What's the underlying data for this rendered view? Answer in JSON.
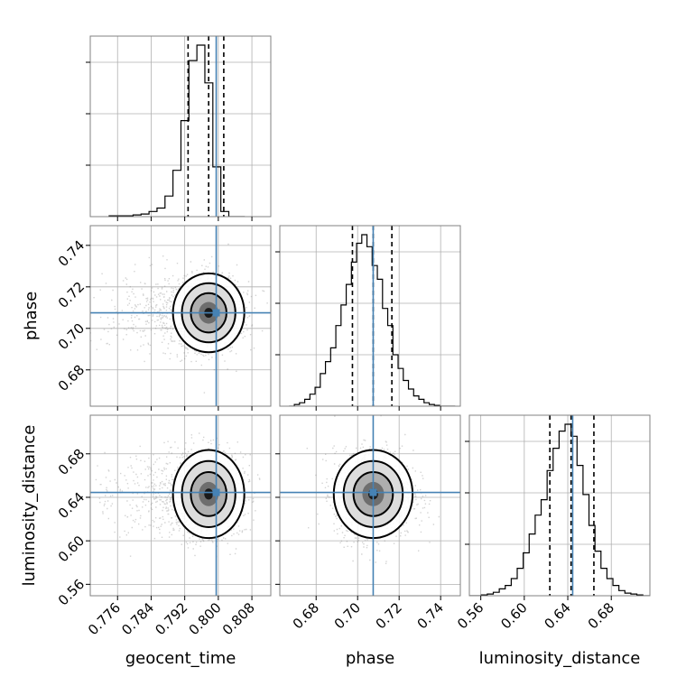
{
  "chart_data": {
    "type": "corner",
    "parameters": [
      "geocent_time",
      "phase",
      "luminosity_distance"
    ],
    "axis_labels": {
      "geocent_time": "geocent_time",
      "phase": "phase",
      "luminosity_distance": "luminosity_distance"
    },
    "ranges": {
      "geocent_time": [
        0.7695,
        0.8125
      ],
      "phase": [
        0.6625,
        0.7495
      ],
      "luminosity_distance": [
        0.5495,
        0.7155
      ]
    },
    "ticks": {
      "geocent_time": [
        0.776,
        0.784,
        0.792,
        0.8,
        0.808
      ],
      "phase": [
        0.68,
        0.7,
        0.72,
        0.74
      ],
      "luminosity_distance": [
        0.56,
        0.6,
        0.64,
        0.68
      ]
    },
    "tick_labels": {
      "geocent_time": [
        "0.776",
        "0.784",
        "0.792",
        "0.800",
        "0.808"
      ],
      "phase": [
        "0.68",
        "0.70",
        "0.72",
        "0.74"
      ],
      "luminosity_distance": [
        "0.56",
        "0.60",
        "0.64",
        "0.68"
      ]
    },
    "truths": {
      "geocent_time": 0.7995,
      "phase": 0.7075,
      "luminosity_distance": 0.6445
    },
    "quantiles": {
      "geocent_time": [
        0.7928,
        0.7977,
        0.8013
      ],
      "phase": [
        0.6975,
        0.7075,
        0.7165
      ],
      "luminosity_distance": [
        0.6235,
        0.643,
        0.664
      ]
    },
    "histograms": {
      "geocent_time": {
        "bin_edges": [
          0.774,
          0.7759,
          0.7778,
          0.7797,
          0.7816,
          0.7835,
          0.7854,
          0.7873,
          0.7892,
          0.7911,
          0.793,
          0.7949,
          0.7968,
          0.7987,
          0.8006,
          0.8025,
          0.8044,
          0.8063
        ],
        "counts": [
          0.005,
          0.005,
          0.005,
          0.01,
          0.015,
          0.03,
          0.05,
          0.12,
          0.27,
          0.56,
          0.91,
          1.0,
          0.78,
          0.29,
          0.03,
          0.0,
          0.0
        ]
      },
      "phase": {
        "bin_edges": [
          0.667,
          0.6695,
          0.672,
          0.6745,
          0.677,
          0.6795,
          0.682,
          0.6845,
          0.687,
          0.6895,
          0.692,
          0.6945,
          0.697,
          0.6995,
          0.702,
          0.7045,
          0.707,
          0.7095,
          0.712,
          0.7145,
          0.717,
          0.7195,
          0.722,
          0.7245,
          0.727,
          0.7295,
          0.732,
          0.7345,
          0.737,
          0.7395,
          0.742,
          0.7445,
          0.747
        ],
        "counts": [
          0.0,
          0.01,
          0.02,
          0.04,
          0.07,
          0.11,
          0.19,
          0.26,
          0.34,
          0.47,
          0.59,
          0.71,
          0.84,
          0.95,
          1.0,
          0.93,
          0.82,
          0.74,
          0.57,
          0.47,
          0.3,
          0.22,
          0.15,
          0.1,
          0.06,
          0.04,
          0.02,
          0.01,
          0.005,
          0.0,
          0.0,
          0.0
        ]
      },
      "luminosity_distance": {
        "bin_edges": [
          0.5495,
          0.555,
          0.5605,
          0.566,
          0.5715,
          0.577,
          0.5825,
          0.588,
          0.5935,
          0.599,
          0.6045,
          0.61,
          0.6155,
          0.621,
          0.6265,
          0.632,
          0.6375,
          0.643,
          0.6485,
          0.654,
          0.6595,
          0.665,
          0.6705,
          0.676,
          0.6815,
          0.687,
          0.6925,
          0.698,
          0.7035,
          0.709,
          0.7155
        ],
        "counts": [
          0.0,
          0.0,
          0.005,
          0.01,
          0.02,
          0.04,
          0.06,
          0.1,
          0.16,
          0.25,
          0.36,
          0.47,
          0.56,
          0.73,
          0.86,
          0.96,
          1.0,
          0.93,
          0.76,
          0.59,
          0.41,
          0.26,
          0.16,
          0.1,
          0.06,
          0.03,
          0.015,
          0.01,
          0.005,
          0.0
        ]
      }
    },
    "contour_levels_sigma": [
      1,
      1.5,
      2
    ],
    "pair_correlations": {
      "phase_vs_geocent_time": 0.0,
      "luminosity_distance_vs_geocent_time": 0.0,
      "luminosity_distance_vs_phase": 0.0
    },
    "grid": true,
    "truth_color": "#4682b4",
    "histogram_color": "#000000",
    "sample_color": "#808080"
  }
}
